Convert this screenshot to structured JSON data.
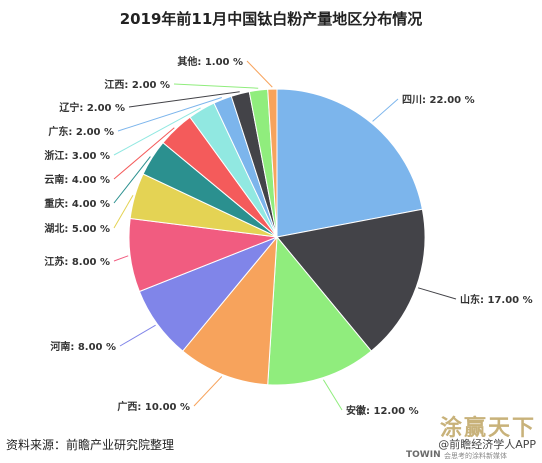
{
  "chart_data": {
    "type": "pie",
    "title": "2019年前11月中国钛白粉产量地区分布情况",
    "slices": [
      {
        "name": "四川",
        "label": "四川: 22.00 %",
        "value": 22,
        "color": "#7cb5ec"
      },
      {
        "name": "山东",
        "label": "山东: 17.00 %",
        "value": 17,
        "color": "#434348"
      },
      {
        "name": "安徽",
        "label": "安徽: 12.00 %",
        "value": 12,
        "color": "#90ed7d"
      },
      {
        "name": "广西",
        "label": "广西: 10.00 %",
        "value": 10,
        "color": "#f7a35c"
      },
      {
        "name": "河南",
        "label": "河南: 8.00 %",
        "value": 8,
        "color": "#8085e9"
      },
      {
        "name": "江苏",
        "label": "江苏: 8.00 %",
        "value": 8,
        "color": "#f15c80"
      },
      {
        "name": "湖北",
        "label": "湖北: 5.00 %",
        "value": 5,
        "color": "#e4d354"
      },
      {
        "name": "重庆",
        "label": "重庆: 4.00 %",
        "value": 4,
        "color": "#2b908f"
      },
      {
        "name": "云南",
        "label": "云南: 4.00 %",
        "value": 4,
        "color": "#f45b5b"
      },
      {
        "name": "浙江",
        "label": "浙江: 3.00 %",
        "value": 3,
        "color": "#91e8e1"
      },
      {
        "name": "广东",
        "label": "广东: 2.00 %",
        "value": 2,
        "color": "#7cb5ec"
      },
      {
        "name": "辽宁",
        "label": "辽宁: 2.00 %",
        "value": 2,
        "color": "#434348"
      },
      {
        "name": "江西",
        "label": "江西: 2.00 %",
        "value": 2,
        "color": "#90ed7d"
      },
      {
        "name": "其他",
        "label": "其他: 1.00 %",
        "value": 1,
        "color": "#f7a35c"
      }
    ]
  },
  "footer": {
    "source": "资料来源：前瞻产业研究院整理"
  },
  "brand": {
    "slogan": "涂赢天下",
    "app_name": "@前瞻经济学人APP",
    "towin": "TOWIN",
    "tagline": "会思考的涂料新媒体"
  }
}
